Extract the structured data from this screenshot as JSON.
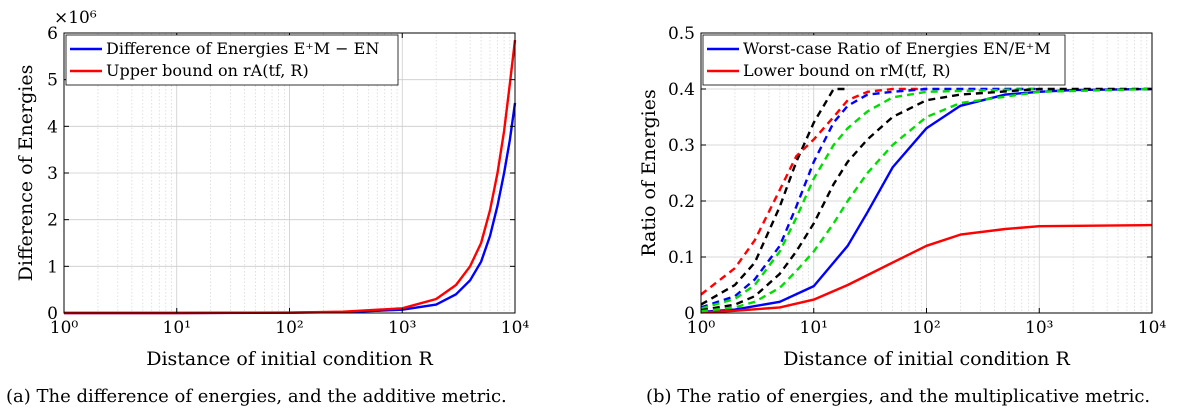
{
  "chart_data": [
    {
      "type": "line",
      "xscale": "log",
      "xlim": [
        1,
        10000
      ],
      "ylim": [
        0,
        6000000
      ],
      "y_multiplier_label": "×10⁶",
      "xlabel": "Distance of initial condition R",
      "ylabel": "Difference of Energies",
      "grid": true,
      "legend": "top-left",
      "xticks": [
        1,
        10,
        100,
        1000,
        10000
      ],
      "xtick_labels": [
        "10⁰",
        "10¹",
        "10²",
        "10³",
        "10⁴"
      ],
      "yticks": [
        0,
        1000000,
        2000000,
        3000000,
        4000000,
        5000000,
        6000000
      ],
      "ytick_labels": [
        "0",
        "1",
        "2",
        "3",
        "4",
        "5",
        "6"
      ],
      "series": [
        {
          "name": "Difference of Energies E⁺M − EN",
          "color": "#0000ff",
          "dash": "solid",
          "x": [
            1,
            10,
            100,
            300,
            1000,
            2000,
            3000,
            4000,
            5000,
            6000,
            7000,
            8000,
            9000,
            10000
          ],
          "y": [
            0,
            500,
            6000,
            20000,
            70000,
            180000,
            400000,
            700000,
            1100000,
            1650000,
            2300000,
            3000000,
            3700000,
            4500000
          ]
        },
        {
          "name": "Upper bound on rA(tf, R)",
          "color": "#ff0000",
          "dash": "solid",
          "x": [
            1,
            10,
            100,
            300,
            1000,
            2000,
            3000,
            4000,
            5000,
            6000,
            7000,
            8000,
            9000,
            10000
          ],
          "y": [
            0,
            600,
            8000,
            28000,
            100000,
            300000,
            600000,
            1000000,
            1500000,
            2200000,
            3000000,
            3900000,
            4900000,
            5850000
          ]
        }
      ],
      "caption": "(a) The difference of energies, and the additive metric."
    },
    {
      "type": "line",
      "xscale": "log",
      "xlim": [
        1,
        10000
      ],
      "ylim": [
        0,
        0.5
      ],
      "xlabel": "Distance of initial condition R",
      "ylabel": "Ratio of Energies",
      "grid": true,
      "legend": "top-left",
      "xticks": [
        1,
        10,
        100,
        1000,
        10000
      ],
      "xtick_labels": [
        "10⁰",
        "10¹",
        "10²",
        "10³",
        "10⁴"
      ],
      "yticks": [
        0,
        0.1,
        0.2,
        0.3,
        0.4,
        0.5
      ],
      "ytick_labels": [
        "0",
        "0.1",
        "0.2",
        "0.3",
        "0.4",
        "0.5"
      ],
      "series": [
        {
          "name": "Worst-case Ratio of Energies EN/E⁺M",
          "color": "#0000ff",
          "dash": "solid",
          "x": [
            1,
            2,
            5,
            10,
            20,
            30,
            50,
            100,
            200,
            500,
            1000,
            2000,
            10000
          ],
          "y": [
            0.002,
            0.006,
            0.02,
            0.048,
            0.12,
            0.18,
            0.26,
            0.33,
            0.37,
            0.39,
            0.395,
            0.398,
            0.4
          ]
        },
        {
          "name": "Lower bound on rM(tf, R)",
          "color": "#ff0000",
          "dash": "solid",
          "x": [
            1,
            2,
            5,
            10,
            20,
            50,
            100,
            200,
            500,
            1000,
            10000
          ],
          "y": [
            0.001,
            0.004,
            0.01,
            0.024,
            0.05,
            0.09,
            0.12,
            0.14,
            0.15,
            0.155,
            0.157
          ]
        },
        {
          "color": "#000000",
          "dash": "dashed",
          "x": [
            1,
            2,
            3,
            5,
            7,
            10,
            15,
            20
          ],
          "y": [
            0.015,
            0.05,
            0.09,
            0.19,
            0.27,
            0.34,
            0.4,
            0.4
          ]
        },
        {
          "color": "#ff0000",
          "dash": "dashed",
          "x": [
            1,
            2,
            3,
            5,
            7,
            10,
            15,
            20,
            30,
            50,
            100
          ],
          "y": [
            0.033,
            0.08,
            0.13,
            0.22,
            0.28,
            0.31,
            0.35,
            0.38,
            0.395,
            0.4,
            0.4
          ]
        },
        {
          "color": "#0000ff",
          "dash": "dashed",
          "x": [
            1,
            2,
            3,
            5,
            7,
            10,
            15,
            20,
            30,
            50,
            100,
            1000
          ],
          "y": [
            0.01,
            0.03,
            0.06,
            0.12,
            0.19,
            0.27,
            0.34,
            0.37,
            0.39,
            0.395,
            0.4,
            0.4
          ]
        },
        {
          "color": "#00dd00",
          "dash": "dashed",
          "x": [
            1,
            2,
            3,
            5,
            7,
            10,
            15,
            20,
            30,
            50,
            100,
            1000
          ],
          "y": [
            0.008,
            0.025,
            0.05,
            0.11,
            0.17,
            0.24,
            0.3,
            0.33,
            0.36,
            0.385,
            0.395,
            0.4
          ]
        },
        {
          "color": "#000000",
          "dash": "dashed",
          "x": [
            1,
            2,
            3,
            5,
            7,
            10,
            15,
            20,
            30,
            50,
            100,
            200,
            1000,
            10000
          ],
          "y": [
            0.005,
            0.015,
            0.03,
            0.07,
            0.11,
            0.16,
            0.23,
            0.27,
            0.31,
            0.35,
            0.38,
            0.39,
            0.4,
            0.4
          ]
        },
        {
          "color": "#00dd00",
          "dash": "dashed",
          "x": [
            1,
            2,
            3,
            5,
            7,
            10,
            15,
            20,
            30,
            50,
            100,
            200,
            1000,
            10000
          ],
          "y": [
            0.003,
            0.01,
            0.02,
            0.045,
            0.075,
            0.11,
            0.16,
            0.2,
            0.25,
            0.3,
            0.35,
            0.375,
            0.395,
            0.4
          ]
        }
      ],
      "caption": "(b) The ratio of energies, and the multiplicative metric."
    }
  ]
}
